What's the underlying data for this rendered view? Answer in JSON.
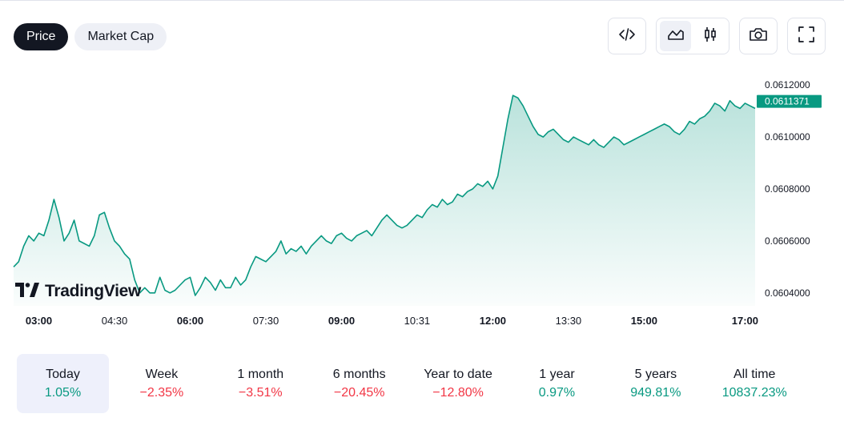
{
  "toggle": {
    "price_label": "Price",
    "market_cap_label": "Market Cap"
  },
  "toolbar": {
    "embed_icon": "code-icon",
    "line_icon": "line-chart-icon",
    "candles_icon": "candlestick-icon",
    "snapshot_icon": "camera-icon",
    "fullscreen_icon": "fullscreen-icon"
  },
  "watermark": {
    "text": "TradingView"
  },
  "colors": {
    "line": "#089981",
    "up": "#089981",
    "down": "#f23645",
    "active_pill": "#131722"
  },
  "chart_data": {
    "type": "area",
    "x_ticks": [
      {
        "label": "03:00",
        "t": 3.0,
        "bold": true
      },
      {
        "label": "04:30",
        "t": 4.5,
        "bold": false
      },
      {
        "label": "06:00",
        "t": 6.0,
        "bold": true
      },
      {
        "label": "07:30",
        "t": 7.5,
        "bold": false
      },
      {
        "label": "09:00",
        "t": 9.0,
        "bold": true
      },
      {
        "label": "10:31",
        "t": 10.5,
        "bold": false
      },
      {
        "label": "12:00",
        "t": 12.0,
        "bold": true
      },
      {
        "label": "13:30",
        "t": 13.5,
        "bold": false
      },
      {
        "label": "15:00",
        "t": 15.0,
        "bold": true
      },
      {
        "label": "17:00",
        "t": 17.0,
        "bold": true
      }
    ],
    "y_ticks": [
      "0.0604000",
      "0.0606000",
      "0.0608000",
      "0.0610000",
      "0.0612000"
    ],
    "ylim": [
      0.06035,
      0.06125
    ],
    "last_value": "0.0611371",
    "series": [
      {
        "x": [
          2.5,
          2.6,
          2.7,
          2.8,
          2.9,
          3.0,
          3.1,
          3.2,
          3.3,
          3.4,
          3.5,
          3.6,
          3.7,
          3.8,
          3.9,
          4.0,
          4.1,
          4.2,
          4.3,
          4.4,
          4.5,
          4.6,
          4.7,
          4.8,
          4.9,
          5.0,
          5.1,
          5.2,
          5.3,
          5.4,
          5.5,
          5.6,
          5.7,
          5.8,
          5.9,
          6.0,
          6.1,
          6.2,
          6.3,
          6.4,
          6.5,
          6.6,
          6.7,
          6.8,
          6.9,
          7.0,
          7.1,
          7.2,
          7.3,
          7.4,
          7.5,
          7.6,
          7.7,
          7.8,
          7.9,
          8.0,
          8.1,
          8.2,
          8.3,
          8.4,
          8.5,
          8.6,
          8.7,
          8.8,
          8.9,
          9.0,
          9.1,
          9.2,
          9.3,
          9.4,
          9.5,
          9.6,
          9.7,
          9.8,
          9.9,
          10.0,
          10.1,
          10.2,
          10.3,
          10.4,
          10.5,
          10.6,
          10.7,
          10.8,
          10.9,
          11.0,
          11.1,
          11.2,
          11.3,
          11.4,
          11.5,
          11.6,
          11.7,
          11.8,
          11.9,
          12.0,
          12.1,
          12.2,
          12.3,
          12.4,
          12.5,
          12.6,
          12.7,
          12.8,
          12.9,
          13.0,
          13.1,
          13.2,
          13.3,
          13.4,
          13.5,
          13.6,
          13.7,
          13.8,
          13.9,
          14.0,
          14.1,
          14.2,
          14.3,
          14.4,
          14.5,
          14.6,
          14.7,
          14.8,
          14.9,
          15.0,
          15.1,
          15.2,
          15.3,
          15.4,
          15.5,
          15.6,
          15.7,
          15.8,
          15.9,
          16.0,
          16.1,
          16.2,
          16.3,
          16.4,
          16.5,
          16.6,
          16.7,
          16.8,
          16.9,
          17.0,
          17.1,
          17.2
        ],
        "values": [
          0.0605,
          0.06052,
          0.06058,
          0.06062,
          0.0606,
          0.06063,
          0.06062,
          0.06068,
          0.06076,
          0.06069,
          0.0606,
          0.06063,
          0.06068,
          0.0606,
          0.06059,
          0.06058,
          0.06062,
          0.0607,
          0.06071,
          0.06065,
          0.0606,
          0.06058,
          0.06055,
          0.06053,
          0.06045,
          0.0604,
          0.06042,
          0.0604,
          0.0604,
          0.06046,
          0.06041,
          0.0604,
          0.06041,
          0.06043,
          0.06045,
          0.06046,
          0.06039,
          0.06042,
          0.06046,
          0.06044,
          0.06041,
          0.06045,
          0.06042,
          0.06042,
          0.06046,
          0.06043,
          0.06045,
          0.0605,
          0.06054,
          0.06053,
          0.06052,
          0.06054,
          0.06056,
          0.0606,
          0.06055,
          0.06057,
          0.06056,
          0.06058,
          0.06055,
          0.06058,
          0.0606,
          0.06062,
          0.0606,
          0.06059,
          0.06062,
          0.06063,
          0.06061,
          0.0606,
          0.06062,
          0.06063,
          0.06064,
          0.06062,
          0.06065,
          0.06068,
          0.0607,
          0.06068,
          0.06066,
          0.06065,
          0.06066,
          0.06068,
          0.0607,
          0.06069,
          0.06072,
          0.06074,
          0.06073,
          0.06076,
          0.06074,
          0.06075,
          0.06078,
          0.06077,
          0.06079,
          0.0608,
          0.06082,
          0.06081,
          0.06083,
          0.0608,
          0.06085,
          0.06096,
          0.06107,
          0.06116,
          0.06115,
          0.06112,
          0.06108,
          0.06104,
          0.06101,
          0.061,
          0.06102,
          0.06103,
          0.06101,
          0.06099,
          0.06098,
          0.061,
          0.06099,
          0.06098,
          0.06097,
          0.06099,
          0.06097,
          0.06096,
          0.06098,
          0.061,
          0.06099,
          0.06097,
          0.06098,
          0.06099,
          0.061,
          0.06101,
          0.06102,
          0.06103,
          0.06104,
          0.06105,
          0.06104,
          0.06102,
          0.06101,
          0.06103,
          0.06106,
          0.06105,
          0.06107,
          0.06108,
          0.0611,
          0.06113,
          0.06112,
          0.0611,
          0.06114,
          0.06112,
          0.06111,
          0.06113,
          0.06112,
          0.06111
        ]
      }
    ],
    "ylabel": "",
    "xlabel": ""
  },
  "periods": [
    {
      "label": "Today",
      "value": "1.05%",
      "dir": "pos",
      "active": true
    },
    {
      "label": "Week",
      "value": "−2.35%",
      "dir": "neg",
      "active": false
    },
    {
      "label": "1 month",
      "value": "−3.51%",
      "dir": "neg",
      "active": false
    },
    {
      "label": "6 months",
      "value": "−20.45%",
      "dir": "neg",
      "active": false
    },
    {
      "label": "Year to date",
      "value": "−12.80%",
      "dir": "neg",
      "active": false
    },
    {
      "label": "1 year",
      "value": "0.97%",
      "dir": "pos",
      "active": false
    },
    {
      "label": "5 years",
      "value": "949.81%",
      "dir": "pos",
      "active": false
    },
    {
      "label": "All time",
      "value": "10837.23%",
      "dir": "pos",
      "active": false
    }
  ]
}
